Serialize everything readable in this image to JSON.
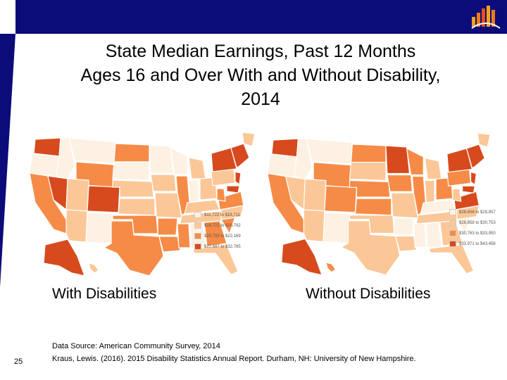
{
  "slide": {
    "title_lines": [
      "State Median Earnings, Past 12 Months",
      "Ages 16 and Over With and Without Disability,",
      "2014"
    ],
    "page_number": "25",
    "colors": {
      "band": "#0b0b7a"
    }
  },
  "maps": {
    "left": {
      "caption": "With Disabilities",
      "legend": [
        {
          "label": "$11,722 to $18,711",
          "color": "#fdf1e3"
        },
        {
          "label": "$18,722 to $20,792",
          "color": "#fcc797"
        },
        {
          "label": "$20,793 to $22,169",
          "color": "#f68b47"
        },
        {
          "label": "$22,687 to $32,785",
          "color": "#d74a1e"
        }
      ]
    },
    "right": {
      "caption": "Without Disabilities",
      "legend": [
        {
          "label": "$28,606 to $28,857",
          "color": "#fdf1e3"
        },
        {
          "label": "$28,858 to $30,753",
          "color": "#fcc797"
        },
        {
          "label": "$30,763 to $33,950",
          "color": "#f68b47"
        },
        {
          "label": "$33,971 to $43,456",
          "color": "#d74a1e"
        }
      ]
    }
  },
  "source": {
    "line1": "Data Source: American Community Survey, 2014",
    "line2": "Kraus, Lewis. (2016). 2015 Disability Statistics Annual Report. Durham, NH: University of New Hampshire."
  }
}
